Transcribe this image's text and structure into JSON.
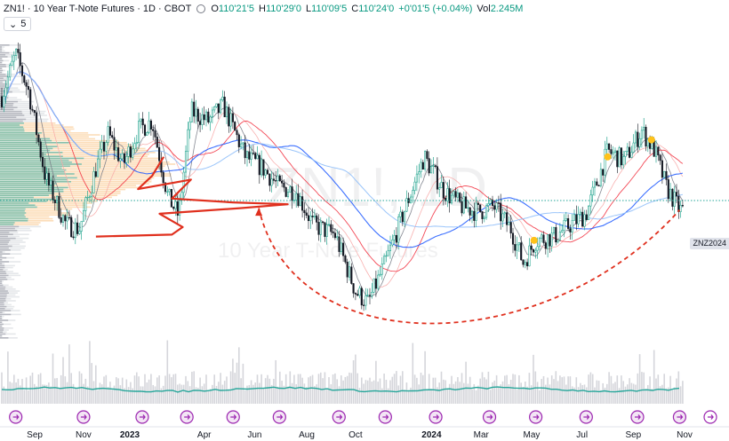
{
  "header": {
    "title": "ZN1! · 10 Year T-Note Futures · 1D · CBOT",
    "open_label": "O",
    "open": "110'21'5",
    "high_label": "H",
    "high": "110'29'0",
    "low_label": "L",
    "low": "110'09'5",
    "close_label": "C",
    "close": "110'24'0",
    "change": "+0'01'5 (+0.04%)",
    "vol_label": "Vol",
    "vol": "2.245M"
  },
  "indicator": {
    "collapse_icon": "chevron-down-icon",
    "count": "5"
  },
  "watermark": {
    "symbol": "ZN1!, 1D",
    "name": "10 Year T-Note Futures"
  },
  "symbol_badge": "ZNZ2024",
  "colors": {
    "up": "#089981",
    "down": "#131722",
    "volume": "#b2b5be",
    "ma_blue": "#2962ff",
    "ma_light_blue": "#90bff9",
    "ma_red": "#f23645",
    "ma_pink": "#f7a9a7",
    "ma_gray": "#787b86",
    "profile_orange": "#fbd7ad",
    "profile_teal": "#26a69a",
    "annotation_red": "#e0301e",
    "marker_yellow": "#ffc21a",
    "event_purple": "#9c27b0"
  },
  "chart_data": {
    "type": "line",
    "chart_style": "candlestick",
    "x_ticks": [
      "Sep",
      "Nov",
      "2023",
      "Apr",
      "Jun",
      "Aug",
      "Oct",
      "2024",
      "Mar",
      "May",
      "Jul",
      "Sep",
      "Nov"
    ],
    "bold_ticks": [
      "2023",
      "2024"
    ],
    "price_path": [
      [
        "2022-08-01",
        116.5
      ],
      [
        "2022-08-20",
        119.0
      ],
      [
        "2022-09-05",
        117.0
      ],
      [
        "2022-09-25",
        112.5
      ],
      [
        "2022-10-20",
        110.0
      ],
      [
        "2022-11-05",
        109.8
      ],
      [
        "2022-11-25",
        113.0
      ],
      [
        "2022-12-10",
        114.8
      ],
      [
        "2022-12-28",
        113.2
      ],
      [
        "2023-01-15",
        115.0
      ],
      [
        "2023-02-01",
        115.5
      ],
      [
        "2023-02-20",
        111.5
      ],
      [
        "2023-03-05",
        110.5
      ],
      [
        "2023-03-20",
        116.0
      ],
      [
        "2023-04-10",
        115.5
      ],
      [
        "2023-04-28",
        116.3
      ],
      [
        "2023-05-25",
        113.6
      ],
      [
        "2023-06-15",
        113.0
      ],
      [
        "2023-07-05",
        112.0
      ],
      [
        "2023-07-25",
        111.8
      ],
      [
        "2023-08-15",
        110.0
      ],
      [
        "2023-09-10",
        109.5
      ],
      [
        "2023-10-05",
        106.5
      ],
      [
        "2023-10-20",
        105.9
      ],
      [
        "2023-11-10",
        108.0
      ],
      [
        "2023-12-05",
        111.0
      ],
      [
        "2023-12-27",
        113.6
      ],
      [
        "2024-01-20",
        111.8
      ],
      [
        "2024-02-10",
        111.0
      ],
      [
        "2024-03-01",
        110.7
      ],
      [
        "2024-03-20",
        111.0
      ],
      [
        "2024-04-10",
        109.8
      ],
      [
        "2024-04-25",
        108.0
      ],
      [
        "2024-05-10",
        109.2
      ],
      [
        "2024-06-01",
        109.4
      ],
      [
        "2024-06-20",
        110.0
      ],
      [
        "2024-07-10",
        110.6
      ],
      [
        "2024-08-05",
        113.9
      ],
      [
        "2024-08-25",
        113.4
      ],
      [
        "2024-09-15",
        115.0
      ],
      [
        "2024-09-30",
        114.0
      ],
      [
        "2024-10-15",
        112.0
      ],
      [
        "2024-10-31",
        110.8
      ]
    ],
    "horizontal_level": 111.3,
    "markers": [
      [
        "2024-05-08",
        109.2
      ],
      [
        "2024-08-05",
        113.6
      ],
      [
        "2024-09-27",
        114.5
      ]
    ],
    "volume_range": "low activity with spikes",
    "grid": false
  }
}
